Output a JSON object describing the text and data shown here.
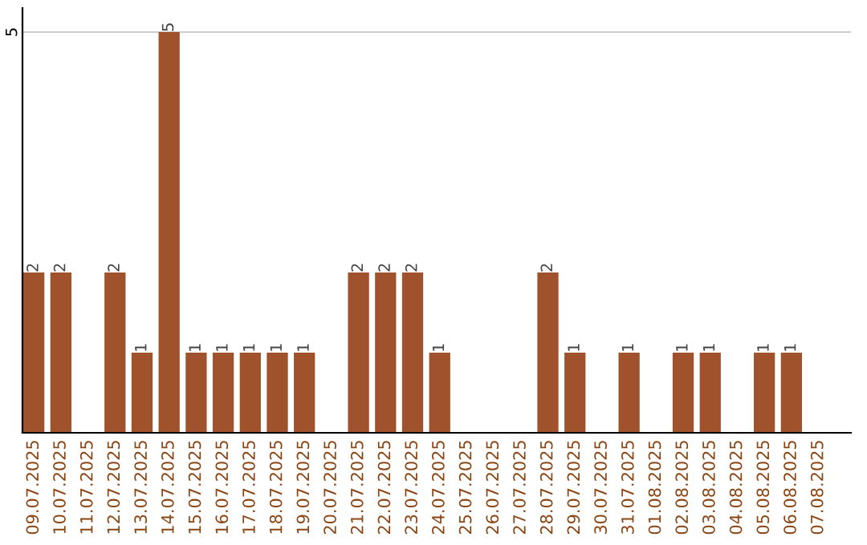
{
  "chart_data": {
    "type": "bar",
    "categories": [
      "09.07.2025",
      "10.07.2025",
      "11.07.2025",
      "12.07.2025",
      "13.07.2025",
      "14.07.2025",
      "15.07.2025",
      "16.07.2025",
      "17.07.2025",
      "18.07.2025",
      "19.07.2025",
      "20.07.2025",
      "21.07.2025",
      "22.07.2025",
      "23.07.2025",
      "24.07.2025",
      "25.07.2025",
      "26.07.2025",
      "27.07.2025",
      "28.07.2025",
      "29.07.2025",
      "30.07.2025",
      "31.07.2025",
      "01.08.2025",
      "02.08.2025",
      "03.08.2025",
      "04.08.2025",
      "05.08.2025",
      "06.08.2025",
      "07.08.2025"
    ],
    "values": [
      2,
      2,
      0,
      2,
      1,
      5,
      1,
      1,
      1,
      1,
      1,
      0,
      2,
      2,
      2,
      1,
      0,
      0,
      0,
      2,
      1,
      0,
      1,
      0,
      1,
      1,
      0,
      1,
      1,
      0
    ],
    "value_labels": [
      "2",
      "2",
      null,
      "2",
      "1",
      "5",
      "1",
      "1",
      "1",
      "1",
      "1",
      null,
      "2",
      "2",
      "2",
      "1",
      null,
      null,
      null,
      "2",
      "1",
      null,
      "1",
      null,
      "1",
      "1",
      null,
      "1",
      "1",
      null
    ],
    "color": "#a0522d",
    "ylim": [
      0,
      5.3
    ],
    "yticks": [
      5
    ],
    "grid": "y"
  }
}
